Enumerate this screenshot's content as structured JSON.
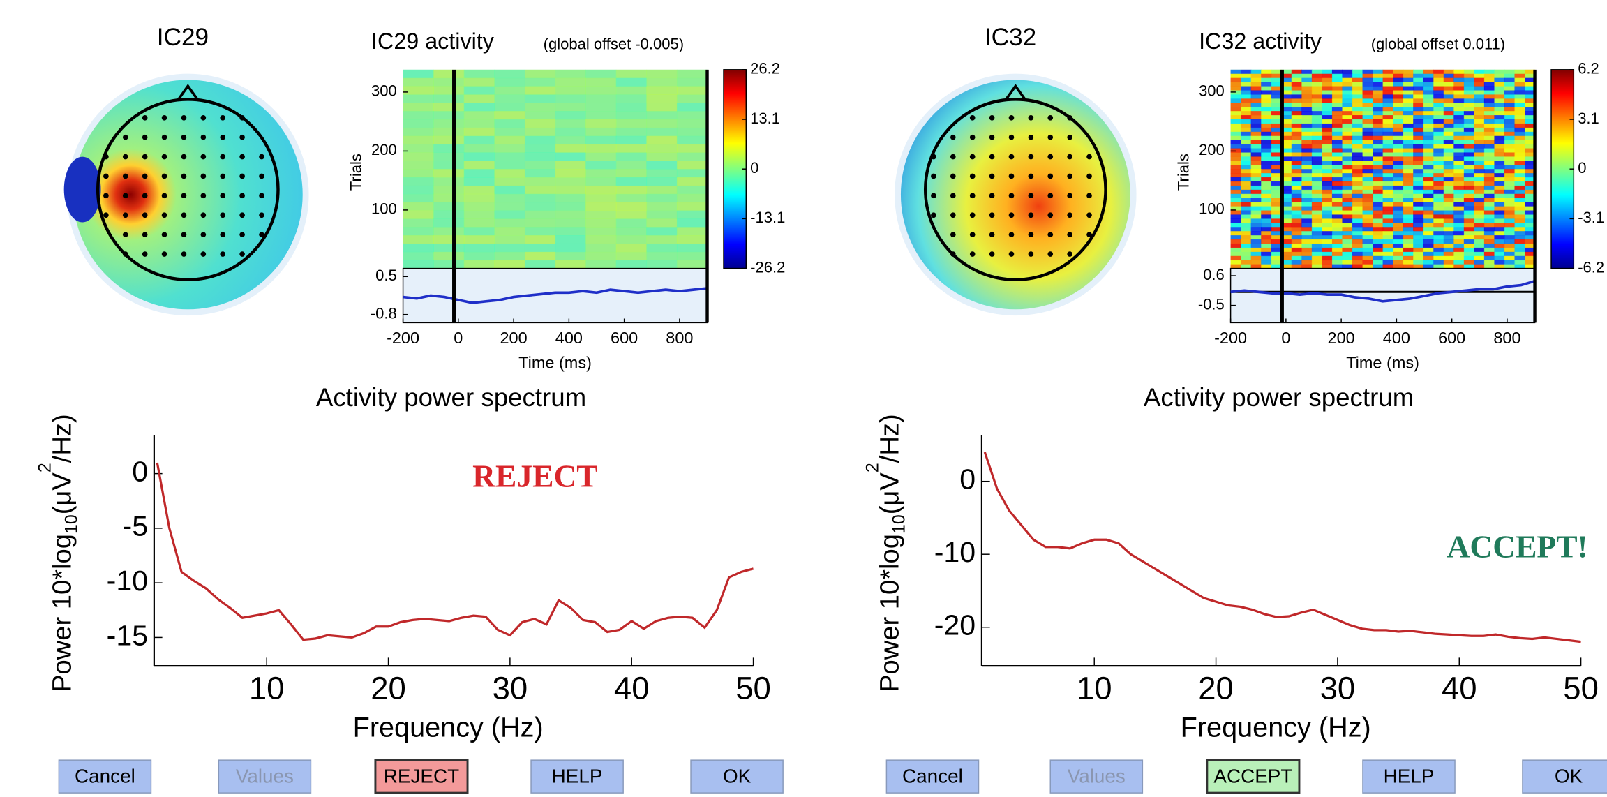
{
  "panels": [
    {
      "topo_title": "IC29",
      "activity_title": "IC29 activity",
      "activity_subtitle": "(global offset -0.005)",
      "trials_label": "Trials",
      "trial_lim": [
        1,
        338
      ],
      "trial_ticks": [
        100,
        200,
        300
      ],
      "colorbar_lim": [
        -26.2,
        26.2
      ],
      "colorbar_ticks": [
        26.2,
        13.1,
        0,
        -13.1,
        -26.2
      ],
      "erp_lim": [
        -1.08,
        0.78
      ],
      "erp_ticks": [
        0.5,
        -0.8
      ],
      "time_lim": [
        -200,
        900
      ],
      "time_ticks": [
        -200,
        0,
        200,
        400,
        600,
        800
      ],
      "time_label": "Time (ms)",
      "erp": {
        "color": "#1f2fc8",
        "x": [
          -200,
          -150,
          -100,
          -50,
          0,
          50,
          100,
          150,
          200,
          250,
          300,
          350,
          400,
          450,
          500,
          550,
          600,
          650,
          700,
          750,
          800,
          850,
          900
        ],
        "values": [
          -0.2,
          -0.25,
          -0.15,
          -0.2,
          -0.3,
          -0.4,
          -0.35,
          -0.3,
          -0.2,
          -0.15,
          -0.1,
          -0.05,
          -0.05,
          0.0,
          -0.05,
          0.05,
          0.0,
          -0.05,
          0.0,
          0.05,
          0.0,
          0.05,
          0.1
        ]
      },
      "spectrum": {
        "title": "Activity power spectrum",
        "xlabel": "Frequency (Hz)",
        "ylabel_parts": [
          "Power 10*log",
          "10",
          "(μV",
          "2",
          "/Hz)"
        ],
        "xlim": [
          1,
          50
        ],
        "xticks": [
          10,
          20,
          30,
          40,
          50
        ],
        "ylim": [
          -17.6,
          3.5
        ],
        "yticks": [
          0,
          -5,
          -10,
          -15
        ],
        "color": "#c0282a",
        "x": [
          1,
          2,
          3,
          4,
          5,
          6,
          7,
          8,
          9,
          10,
          11,
          12,
          13,
          14,
          15,
          16,
          17,
          18,
          19,
          20,
          21,
          22,
          23,
          24,
          25,
          26,
          27,
          28,
          29,
          30,
          31,
          32,
          33,
          34,
          35,
          36,
          37,
          38,
          39,
          40,
          41,
          42,
          43,
          44,
          45,
          46,
          47,
          48,
          49,
          50
        ],
        "values": [
          1,
          -5,
          -9,
          -9.8,
          -10.5,
          -11.5,
          -12.3,
          -13.2,
          -13,
          -12.8,
          -12.5,
          -13.8,
          -15.2,
          -15.1,
          -14.8,
          -14.9,
          -15,
          -14.6,
          -14,
          -14,
          -13.6,
          -13.4,
          -13.3,
          -13.4,
          -13.5,
          -13.2,
          -13,
          -13.1,
          -14.3,
          -14.8,
          -13.6,
          -13.3,
          -13.8,
          -11.6,
          -12.3,
          -13.4,
          -13.6,
          -14.5,
          -14.3,
          -13.5,
          -14.2,
          -13.5,
          -13.2,
          -13.1,
          -13.2,
          -14.1,
          -12.5,
          -9.5,
          -9,
          -8.7
        ]
      },
      "verdict": "REJECT",
      "verdict_color": "#d9262b",
      "buttons": [
        {
          "label": "Cancel",
          "color": "#a8bff0"
        },
        {
          "label": "Values",
          "color": "#a8bff0"
        },
        {
          "label": "REJECT",
          "color": "#f39a9a"
        },
        {
          "label": "HELP",
          "color": "#a8bff0"
        },
        {
          "label": "OK",
          "color": "#a8bff0"
        }
      ]
    },
    {
      "topo_title": "IC32",
      "activity_title": "IC32 activity",
      "activity_subtitle": "(global offset 0.011)",
      "trials_label": "Trials",
      "trial_lim": [
        1,
        338
      ],
      "trial_ticks": [
        100,
        200,
        300
      ],
      "colorbar_lim": [
        -6.2,
        6.2
      ],
      "colorbar_ticks": [
        6.2,
        3.1,
        0,
        -3.1,
        -6.2
      ],
      "erp_lim": [
        -1.14,
        0.87
      ],
      "erp_ticks": [
        0.6,
        -0.5
      ],
      "time_lim": [
        -200,
        900
      ],
      "time_ticks": [
        -200,
        0,
        200,
        400,
        600,
        800
      ],
      "time_label": "Time (ms)",
      "erp": {
        "color": "#1f2fc8",
        "x": [
          -200,
          -150,
          -100,
          -50,
          0,
          50,
          100,
          150,
          200,
          250,
          300,
          350,
          400,
          450,
          500,
          550,
          600,
          650,
          700,
          750,
          800,
          850,
          900
        ],
        "values": [
          0.0,
          0.05,
          0.0,
          -0.05,
          -0.05,
          -0.1,
          -0.05,
          -0.1,
          -0.1,
          -0.2,
          -0.25,
          -0.35,
          -0.3,
          -0.25,
          -0.15,
          -0.05,
          0.0,
          0.05,
          0.1,
          0.1,
          0.2,
          0.25,
          0.4
        ]
      },
      "spectrum": {
        "title": "Activity power spectrum",
        "xlabel": "Frequency (Hz)",
        "ylabel_parts": [
          "Power 10*log",
          "10",
          "(μV",
          "2",
          "/Hz)"
        ],
        "xlim": [
          1,
          50
        ],
        "xticks": [
          10,
          20,
          30,
          40,
          50
        ],
        "ylim": [
          -25.3,
          6.3
        ],
        "yticks": [
          0,
          -10,
          -20
        ],
        "color": "#c0282a",
        "x": [
          1,
          2,
          3,
          4,
          5,
          6,
          7,
          8,
          9,
          10,
          11,
          12,
          13,
          14,
          15,
          16,
          17,
          18,
          19,
          20,
          21,
          22,
          23,
          24,
          25,
          26,
          27,
          28,
          29,
          30,
          31,
          32,
          33,
          34,
          35,
          36,
          37,
          38,
          39,
          40,
          41,
          42,
          43,
          44,
          45,
          46,
          47,
          48,
          49,
          50
        ],
        "values": [
          4,
          -1,
          -4,
          -6,
          -8,
          -9,
          -9,
          -9.2,
          -8.5,
          -8,
          -8,
          -8.5,
          -10,
          -11,
          -12,
          -13,
          -14,
          -15,
          -16,
          -16.5,
          -17,
          -17.2,
          -17.6,
          -18.2,
          -18.6,
          -18.5,
          -18,
          -17.6,
          -18.3,
          -19,
          -19.7,
          -20.2,
          -20.4,
          -20.4,
          -20.6,
          -20.5,
          -20.7,
          -20.9,
          -21,
          -21.1,
          -21.2,
          -21.2,
          -21,
          -21.3,
          -21.5,
          -21.6,
          -21.4,
          -21.6,
          -21.8,
          -22
        ]
      },
      "verdict": "ACCEPT!",
      "verdict_color": "#1f7a5a",
      "buttons": [
        {
          "label": "Cancel",
          "color": "#a8bff0"
        },
        {
          "label": "Values",
          "color": "#a8bff0"
        },
        {
          "label": "ACCEPT",
          "color": "#b9f0b9"
        },
        {
          "label": "HELP",
          "color": "#a8bff0"
        },
        {
          "label": "OK",
          "color": "#a8bff0"
        }
      ]
    }
  ]
}
